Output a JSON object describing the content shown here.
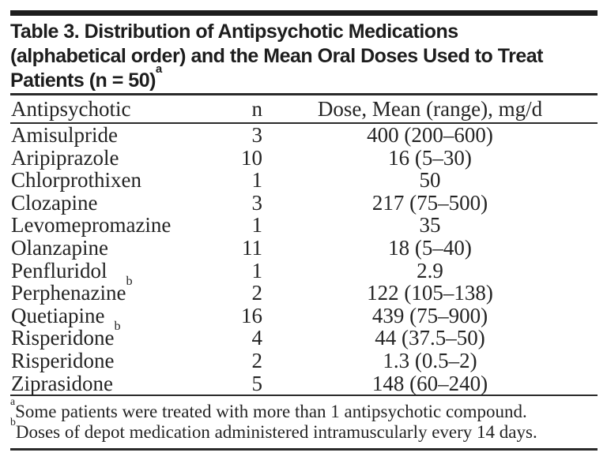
{
  "page": {
    "background": "#ffffff",
    "text_color": "#242424",
    "title_color": "#1d1d1d",
    "rule_color": "#2a2a2a"
  },
  "table": {
    "title": {
      "line1": "Table 3. Distribution of Antipsychotic Medications",
      "line2": "(alphabetical order) and the Mean Oral Doses Used to Treat",
      "line3": "Patients (n = 50)",
      "line3_sup": "a"
    },
    "header": {
      "antipsychotic": "Antipsychotic",
      "n": "n",
      "dose": "Dose, Mean (range), mg/d"
    },
    "rows": [
      {
        "name": "Amisulpride",
        "sup": "",
        "n": "3",
        "dose": "400 (200–600)"
      },
      {
        "name": "Aripiprazole",
        "sup": "",
        "n": "10",
        "dose": "16 (5–30)"
      },
      {
        "name": "Chlorprothixen",
        "sup": "",
        "n": "1",
        "dose": "50"
      },
      {
        "name": "Clozapine",
        "sup": "",
        "n": "3",
        "dose": "217 (75–500)"
      },
      {
        "name": "Levomepromazine",
        "sup": "",
        "n": "1",
        "dose": "35"
      },
      {
        "name": "Olanzapine",
        "sup": "",
        "n": "11",
        "dose": "18 (5–40)"
      },
      {
        "name": "Penfluridol",
        "sup": "",
        "n": "1",
        "dose": "2.9"
      },
      {
        "name": "Perphenazine",
        "sup": "b",
        "n": "2",
        "dose": "122 (105–138)"
      },
      {
        "name": "Quetiapine",
        "sup": "",
        "n": "16",
        "dose": "439 (75–900)"
      },
      {
        "name": "Risperidone",
        "sup": "b",
        "n": "4",
        "dose": "44 (37.5–50)"
      },
      {
        "name": "Risperidone",
        "sup": "",
        "n": "2",
        "dose": "1.3 (0.5–2)"
      },
      {
        "name": "Ziprasidone",
        "sup": "",
        "n": "5",
        "dose": "148 (60–240)"
      }
    ],
    "footnotes": [
      {
        "marker": "a",
        "text": "Some patients were treated with more than 1 antipsychotic compound."
      },
      {
        "marker": "b",
        "text": "Doses of depot medication administered intramuscularly every 14 days."
      }
    ]
  }
}
